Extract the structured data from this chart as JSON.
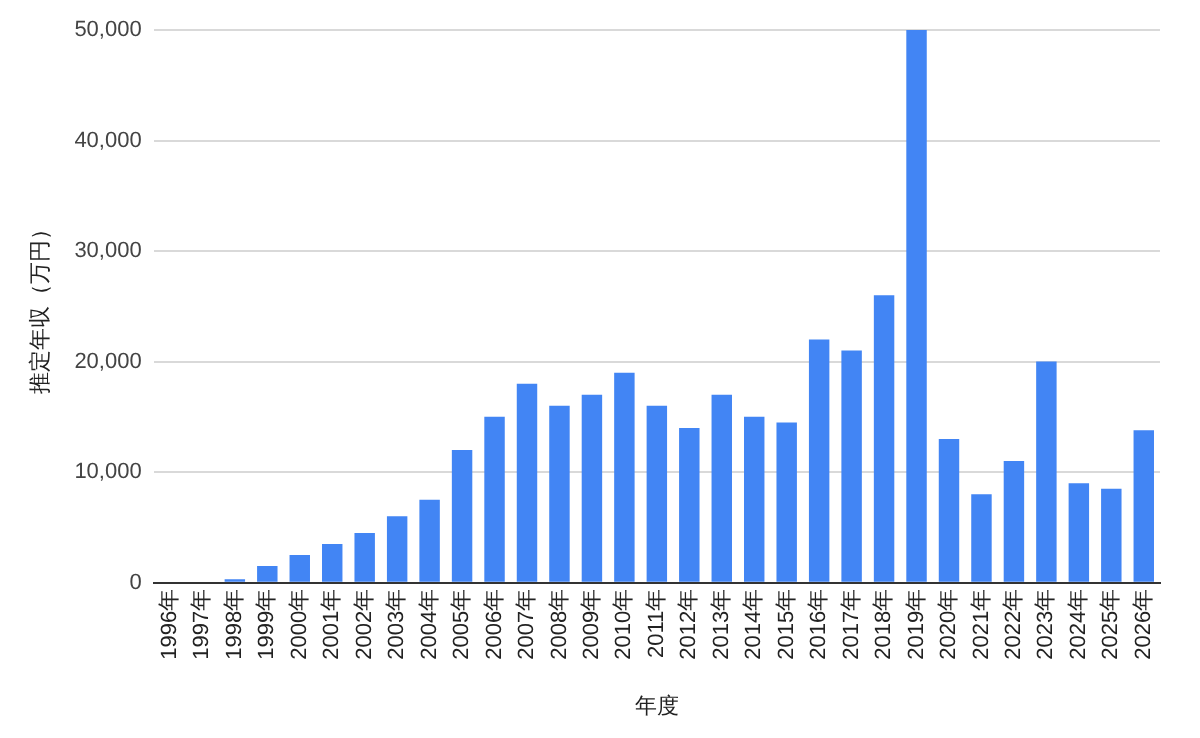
{
  "chart_data": {
    "type": "bar",
    "xlabel": "年度",
    "ylabel": "推定年収（万円）",
    "categories": [
      "1996年",
      "1997年",
      "1998年",
      "1999年",
      "2000年",
      "2001年",
      "2002年",
      "2003年",
      "2004年",
      "2005年",
      "2006年",
      "2007年",
      "2008年",
      "2009年",
      "2010年",
      "2011年",
      "2012年",
      "2013年",
      "2014年",
      "2015年",
      "2016年",
      "2017年",
      "2018年",
      "2019年",
      "2020年",
      "2021年",
      "2022年",
      "2023年",
      "2024年",
      "2025年",
      "2026年"
    ],
    "values": [
      0,
      0,
      300,
      1500,
      2500,
      3500,
      4500,
      6000,
      7500,
      12000,
      15000,
      18000,
      16000,
      17000,
      19000,
      16000,
      14000,
      17000,
      15000,
      14500,
      22000,
      21000,
      26000,
      50000,
      13000,
      8000,
      11000,
      20000,
      9000,
      8500,
      13800
    ],
    "color": "#4285f4",
    "ylim": [
      0,
      50000
    ],
    "yticks": [
      0,
      {
        "value": 10000,
        "label": "10,000"
      },
      {
        "value": 20000,
        "label": "20,000"
      },
      {
        "value": 30000,
        "label": "30,000"
      },
      {
        "value": 40000,
        "label": "40,000"
      },
      {
        "value": 50000,
        "label": "50,000"
      }
    ],
    "grid": "y"
  }
}
